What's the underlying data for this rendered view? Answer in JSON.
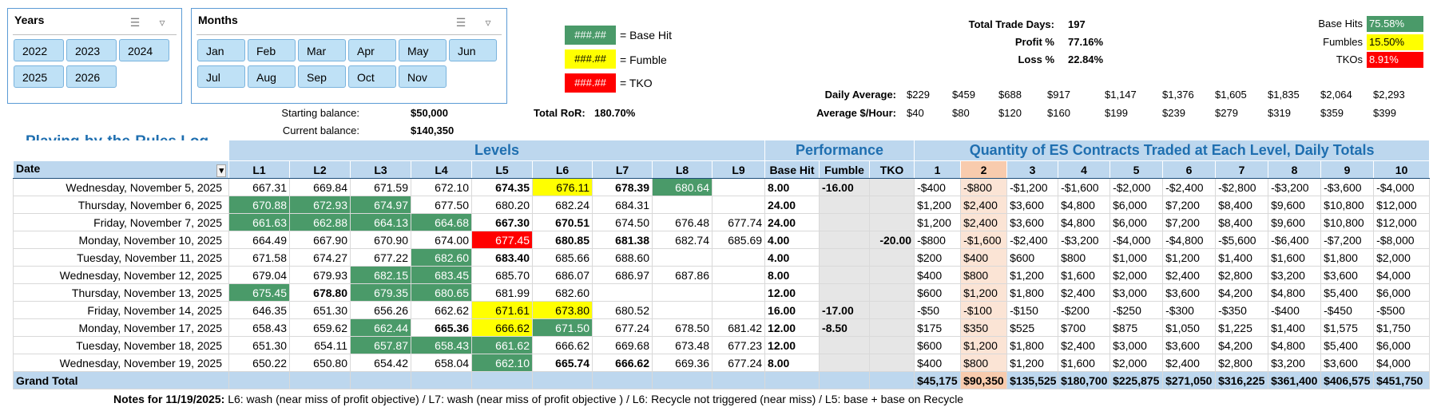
{
  "slicers": {
    "years": {
      "title": "Years",
      "items": [
        "2022",
        "2023",
        "2024",
        "2025",
        "2026"
      ]
    },
    "months": {
      "title": "Months",
      "items": [
        "Jan",
        "Feb",
        "Mar",
        "Apr",
        "May",
        "Jun",
        "Jul",
        "Aug",
        "Sep",
        "Oct",
        "Nov"
      ]
    }
  },
  "legend": [
    {
      "sample": "###.##",
      "label": "= Base Hit",
      "color": "#4a9a69"
    },
    {
      "sample": "###.##",
      "label": "= Fumble",
      "color": "#ffff00"
    },
    {
      "sample": "###.##",
      "label": "= TKO",
      "color": "#ff0000"
    }
  ],
  "stats": {
    "total_trade_days_label": "Total Trade Days:",
    "total_trade_days": "197",
    "profit_label": "Profit %",
    "profit": "77.16%",
    "loss_label": "Loss %",
    "loss": "22.84%",
    "base_hits_label": "Base Hits",
    "base_hits": "75.58%",
    "fumbles_label": "Fumbles",
    "fumbles": "15.50%",
    "tkos_label": "TKOs",
    "tkos": "8.91%"
  },
  "daily": {
    "daily_average_label": "Daily Average:",
    "daily_average": [
      "$229",
      "$459",
      "$688",
      "$917",
      "$1,147",
      "$1,376",
      "$1,605",
      "$1,835",
      "$2,064",
      "$2,293"
    ],
    "avg_hour_label": "Average $/Hour:",
    "avg_hour": [
      "$40",
      "$80",
      "$120",
      "$160",
      "$199",
      "$239",
      "$279",
      "$319",
      "$359",
      "$399"
    ]
  },
  "balances": {
    "starting_label": "Starting balance:",
    "starting": "$50,000",
    "current_label": "Current balance:",
    "current": "$140,350",
    "ror_label": "Total RoR:",
    "ror": "180.70%"
  },
  "log_title": "Playing-by-the-Rules Log",
  "groups": {
    "levels": "Levels",
    "performance": "Performance",
    "quantity": "Quantity of ES Contracts Traded at Each Level, Daily Totals"
  },
  "columns": [
    "Date",
    "L1",
    "L2",
    "L3",
    "L4",
    "L5",
    "L6",
    "L7",
    "L8",
    "L9",
    "Base Hit",
    "Fumble",
    "TKO",
    "1",
    "2",
    "3",
    "4",
    "5",
    "6",
    "7",
    "8",
    "9",
    "10"
  ],
  "rows": [
    {
      "date": "Wednesday, November 5, 2025",
      "levels": [
        "667.31",
        "669.84",
        "671.59",
        "672.10",
        "674.35",
        "676.11",
        "678.39",
        "680.64",
        ""
      ],
      "lstyle": [
        "",
        "",
        "",
        "",
        "b",
        "y",
        "b",
        "g",
        ""
      ],
      "perf": [
        "8.00",
        "-16.00",
        ""
      ],
      "qty": [
        "-$400",
        "-$800",
        "-$1,200",
        "-$1,600",
        "-$2,000",
        "-$2,400",
        "-$2,800",
        "-$3,200",
        "-$3,600",
        "-$4,000"
      ]
    },
    {
      "date": "Thursday, November 6, 2025",
      "levels": [
        "670.88",
        "672.93",
        "674.97",
        "677.50",
        "680.20",
        "682.24",
        "684.31",
        "",
        ""
      ],
      "lstyle": [
        "g",
        "g",
        "g",
        "",
        "",
        "",
        "",
        "",
        ""
      ],
      "perf": [
        "24.00",
        "",
        ""
      ],
      "qty": [
        "$1,200",
        "$2,400",
        "$3,600",
        "$4,800",
        "$6,000",
        "$7,200",
        "$8,400",
        "$9,600",
        "$10,800",
        "$12,000"
      ]
    },
    {
      "date": "Friday, November 7, 2025",
      "levels": [
        "661.63",
        "662.88",
        "664.13",
        "664.68",
        "667.30",
        "670.51",
        "674.50",
        "676.48",
        "677.74"
      ],
      "lstyle": [
        "g",
        "g",
        "g",
        "g",
        "b",
        "b",
        "",
        "",
        ""
      ],
      "perf": [
        "24.00",
        "",
        ""
      ],
      "qty": [
        "$1,200",
        "$2,400",
        "$3,600",
        "$4,800",
        "$6,000",
        "$7,200",
        "$8,400",
        "$9,600",
        "$10,800",
        "$12,000"
      ]
    },
    {
      "date": "Monday, November 10, 2025",
      "levels": [
        "664.49",
        "667.90",
        "670.90",
        "674.00",
        "677.45",
        "680.85",
        "681.38",
        "682.74",
        "685.69"
      ],
      "lstyle": [
        "",
        "",
        "",
        "",
        "r",
        "b",
        "b",
        "",
        ""
      ],
      "perf": [
        "4.00",
        "",
        "-20.00"
      ],
      "qty": [
        "-$800",
        "-$1,600",
        "-$2,400",
        "-$3,200",
        "-$4,000",
        "-$4,800",
        "-$5,600",
        "-$6,400",
        "-$7,200",
        "-$8,000"
      ]
    },
    {
      "date": "Tuesday, November 11, 2025",
      "levels": [
        "671.58",
        "674.27",
        "677.22",
        "682.60",
        "683.40",
        "685.66",
        "688.60",
        "",
        ""
      ],
      "lstyle": [
        "",
        "",
        "",
        "g",
        "b",
        "",
        "",
        "",
        ""
      ],
      "perf": [
        "4.00",
        "",
        ""
      ],
      "qty": [
        "$200",
        "$400",
        "$600",
        "$800",
        "$1,000",
        "$1,200",
        "$1,400",
        "$1,600",
        "$1,800",
        "$2,000"
      ]
    },
    {
      "date": "Wednesday, November 12, 2025",
      "levels": [
        "679.04",
        "679.93",
        "682.15",
        "683.45",
        "685.70",
        "686.07",
        "686.97",
        "687.86",
        ""
      ],
      "lstyle": [
        "",
        "",
        "g",
        "g",
        "",
        "",
        "",
        "",
        ""
      ],
      "perf": [
        "8.00",
        "",
        ""
      ],
      "qty": [
        "$400",
        "$800",
        "$1,200",
        "$1,600",
        "$2,000",
        "$2,400",
        "$2,800",
        "$3,200",
        "$3,600",
        "$4,000"
      ]
    },
    {
      "date": "Thursday, November 13, 2025",
      "levels": [
        "675.45",
        "678.80",
        "679.35",
        "680.65",
        "681.99",
        "682.60",
        "",
        "",
        ""
      ],
      "lstyle": [
        "g",
        "b",
        "g",
        "g",
        "",
        "",
        "",
        "",
        ""
      ],
      "perf": [
        "12.00",
        "",
        ""
      ],
      "qty": [
        "$600",
        "$1,200",
        "$1,800",
        "$2,400",
        "$3,000",
        "$3,600",
        "$4,200",
        "$4,800",
        "$5,400",
        "$6,000"
      ]
    },
    {
      "date": "Friday, November 14, 2025",
      "levels": [
        "646.35",
        "651.30",
        "656.26",
        "662.62",
        "671.61",
        "673.80",
        "680.52",
        "",
        ""
      ],
      "lstyle": [
        "",
        "",
        "",
        "",
        "y",
        "y",
        "",
        "",
        ""
      ],
      "perf": [
        "16.00",
        "-17.00",
        ""
      ],
      "qty": [
        "-$50",
        "-$100",
        "-$150",
        "-$200",
        "-$250",
        "-$300",
        "-$350",
        "-$400",
        "-$450",
        "-$500"
      ]
    },
    {
      "date": "Monday, November 17, 2025",
      "levels": [
        "658.43",
        "659.62",
        "662.44",
        "665.36",
        "666.62",
        "671.50",
        "677.24",
        "678.50",
        "681.42"
      ],
      "lstyle": [
        "",
        "",
        "g",
        "b",
        "y",
        "g",
        "",
        "",
        ""
      ],
      "perf": [
        "12.00",
        "-8.50",
        ""
      ],
      "qty": [
        "$175",
        "$350",
        "$525",
        "$700",
        "$875",
        "$1,050",
        "$1,225",
        "$1,400",
        "$1,575",
        "$1,750"
      ]
    },
    {
      "date": "Tuesday, November 18, 2025",
      "levels": [
        "651.30",
        "654.11",
        "657.87",
        "658.43",
        "661.62",
        "666.62",
        "669.68",
        "673.48",
        "677.23"
      ],
      "lstyle": [
        "",
        "",
        "g",
        "g",
        "g",
        "",
        "",
        "",
        ""
      ],
      "perf": [
        "12.00",
        "",
        ""
      ],
      "qty": [
        "$600",
        "$1,200",
        "$1,800",
        "$2,400",
        "$3,000",
        "$3,600",
        "$4,200",
        "$4,800",
        "$5,400",
        "$6,000"
      ]
    },
    {
      "date": "Wednesday, November 19, 2025",
      "levels": [
        "650.22",
        "650.80",
        "654.42",
        "658.04",
        "662.10",
        "665.74",
        "666.62",
        "669.36",
        "677.24"
      ],
      "lstyle": [
        "",
        "",
        "",
        "",
        "g",
        "b",
        "b",
        "",
        ""
      ],
      "perf": [
        "8.00",
        "",
        ""
      ],
      "qty": [
        "$400",
        "$800",
        "$1,200",
        "$1,600",
        "$2,000",
        "$2,400",
        "$2,800",
        "$3,200",
        "$3,600",
        "$4,000"
      ]
    }
  ],
  "grand_total": {
    "label": "Grand Total",
    "qty": [
      "$45,175",
      "$90,350",
      "$135,525",
      "$180,700",
      "$225,875",
      "$271,050",
      "$316,225",
      "$361,400",
      "$406,575",
      "$451,750"
    ]
  },
  "notes": {
    "label": "Notes for 11/19/2025:",
    "text": "L6: wash (near miss of profit objective) / L7: wash (near miss of profit objective ) / L6: Recycle not triggered (near miss) / L5: base + base on Recycle"
  },
  "colors": {
    "base_hit": "#4a9a69",
    "fumble": "#ffff00",
    "tko": "#ff0000",
    "header": "#bdd7ee",
    "slicer_button": "#bfe1f6"
  }
}
